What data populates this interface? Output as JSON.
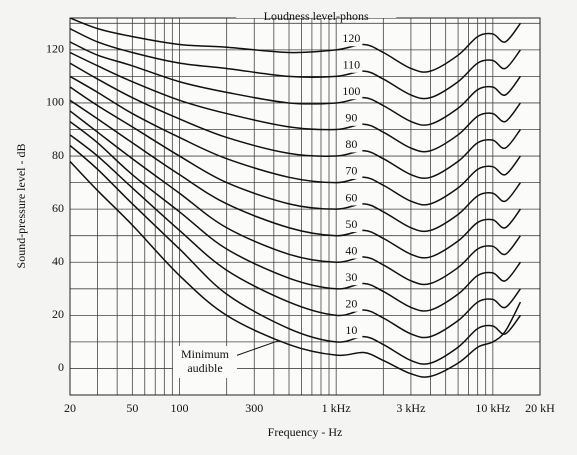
{
  "chart_data": {
    "type": "line",
    "x_label": "Frequency - Hz",
    "y_label": "Sound-pressure level - dB",
    "legend_title": "Loudness level-phons",
    "log_x": true,
    "grid": true,
    "color": "#111111",
    "x": [
      20,
      30,
      50,
      100,
      200,
      500,
      1000,
      1500,
      2000,
      3000,
      4000,
      6000,
      8000,
      10000,
      12000,
      15000
    ],
    "xlim": [
      20,
      20000
    ],
    "ylim": [
      -10,
      132
    ],
    "xticks": [
      20,
      50,
      100,
      300,
      {
        "value": 1000,
        "label": "1 kHz"
      },
      {
        "value": 3000,
        "label": "3 kHz"
      },
      {
        "value": 10000,
        "label": "10 kHz"
      },
      {
        "value": 20000,
        "label": "20 kH"
      }
    ],
    "yticks": [
      0,
      20,
      40,
      60,
      80,
      100,
      120
    ],
    "x_minor_grid": [
      30,
      40,
      60,
      70,
      80,
      90,
      200,
      400,
      500,
      600,
      700,
      800,
      900,
      2000,
      4000,
      5000,
      6000,
      7000,
      8000,
      9000
    ],
    "y_minor_grid": [
      -10,
      10,
      30,
      50,
      70,
      90,
      110,
      130
    ],
    "series": [
      {
        "name": "Minimum audible",
        "values": [
          78,
          67,
          54,
          35,
          20,
          9,
          5,
          6,
          3,
          -2,
          -3,
          2,
          8,
          10,
          14,
          25
        ]
      },
      {
        "name": "10",
        "values": [
          84,
          75,
          62,
          45,
          28,
          15,
          10,
          12,
          9,
          3,
          2,
          8,
          15,
          16,
          13,
          20
        ]
      },
      {
        "name": "20",
        "values": [
          88,
          80,
          68,
          52,
          37,
          25,
          20,
          22,
          19,
          13,
          12,
          18,
          25,
          26,
          23,
          30
        ]
      },
      {
        "name": "30",
        "values": [
          93,
          85,
          73,
          59,
          45,
          34,
          30,
          32,
          29,
          23,
          22,
          28,
          35,
          36,
          33,
          40
        ]
      },
      {
        "name": "40",
        "values": [
          97,
          89,
          79,
          66,
          53,
          43,
          40,
          42,
          39,
          33,
          32,
          38,
          45,
          46,
          43,
          50
        ]
      },
      {
        "name": "50",
        "values": [
          101,
          94,
          85,
          73,
          62,
          53,
          50,
          52,
          49,
          43,
          42,
          48,
          55,
          56,
          53,
          60
        ]
      },
      {
        "name": "60",
        "values": [
          106,
          99,
          91,
          80,
          70,
          62,
          60,
          62,
          59,
          53,
          52,
          58,
          65,
          66,
          63,
          70
        ]
      },
      {
        "name": "70",
        "values": [
          110,
          104,
          96,
          87,
          79,
          72,
          70,
          72,
          69,
          63,
          62,
          68,
          75,
          76,
          73,
          80
        ]
      },
      {
        "name": "80",
        "values": [
          115,
          109,
          102,
          94,
          87,
          81,
          80,
          82,
          79,
          73,
          72,
          78,
          85,
          86,
          83,
          90
        ]
      },
      {
        "name": "90",
        "values": [
          119,
          114,
          108,
          101,
          96,
          91,
          90,
          92,
          89,
          83,
          82,
          88,
          95,
          96,
          93,
          100
        ]
      },
      {
        "name": "100",
        "values": [
          123,
          118,
          114,
          108,
          104,
          100,
          100,
          102,
          99,
          93,
          92,
          98,
          105,
          106,
          103,
          110
        ]
      },
      {
        "name": "110",
        "values": [
          128,
          123,
          119,
          115,
          113,
          110,
          110,
          112,
          109,
          103,
          102,
          108,
          115,
          116,
          113,
          120
        ]
      },
      {
        "name": "120",
        "values": [
          132,
          128,
          125,
          122,
          121,
          119,
          120,
          122,
          119,
          113,
          112,
          118,
          125,
          126,
          123,
          130
        ]
      }
    ]
  }
}
